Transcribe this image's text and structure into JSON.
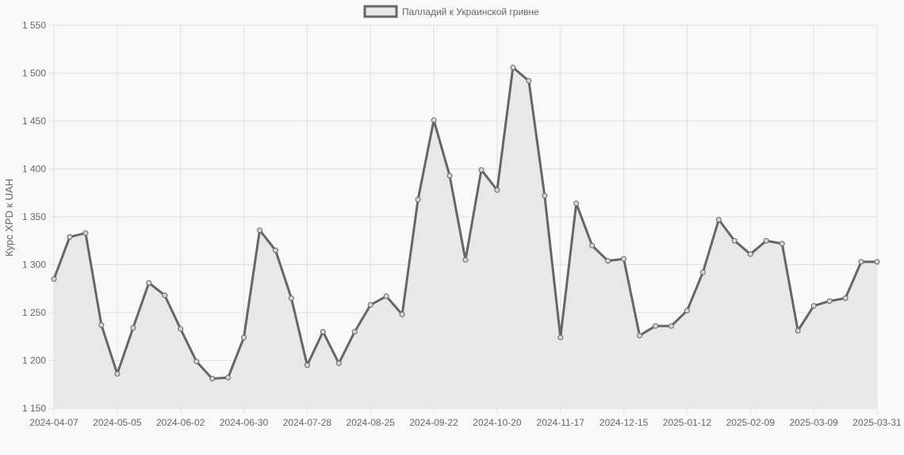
{
  "chart_data": {
    "type": "area",
    "legend": {
      "label": "Палладий к Украинской гривне",
      "position": "top-center"
    },
    "ylabel": "Курс XPD к UAH",
    "xlabel": "",
    "ylim": [
      1150,
      1550
    ],
    "y_ticks": [
      "1 150",
      "1 200",
      "1 250",
      "1 300",
      "1 350",
      "1 400",
      "1 450",
      "1 500",
      "1 550"
    ],
    "x_ticks": [
      "2024-04-07",
      "2024-05-05",
      "2024-06-02",
      "2024-06-30",
      "2024-07-28",
      "2024-08-25",
      "2024-09-22",
      "2024-10-20",
      "2024-11-17",
      "2024-12-15",
      "2025-01-12",
      "2025-02-09",
      "2025-03-09",
      "2025-03-31"
    ],
    "grid": true,
    "colors": {
      "line": "#666666",
      "fill": "#e8e8e8",
      "grid": "#e0e0e0",
      "background": "#f8f8f8"
    },
    "series": [
      {
        "name": "Палладий к Украинской гривне",
        "values": [
          1285,
          1329,
          1333,
          1237,
          1186,
          1234,
          1281,
          1268,
          1233,
          1199,
          1181,
          1182,
          1224,
          1336,
          1315,
          1265,
          1195,
          1230,
          1197,
          1230,
          1258,
          1267,
          1248,
          1368,
          1451,
          1393,
          1305,
          1399,
          1378,
          1506,
          1492,
          1372,
          1224,
          1364,
          1320,
          1304,
          1306,
          1226,
          1236,
          1236,
          1252,
          1292,
          1347,
          1325,
          1311,
          1325,
          1322,
          1231,
          1257,
          1262,
          1265,
          1303,
          1303
        ]
      }
    ]
  }
}
